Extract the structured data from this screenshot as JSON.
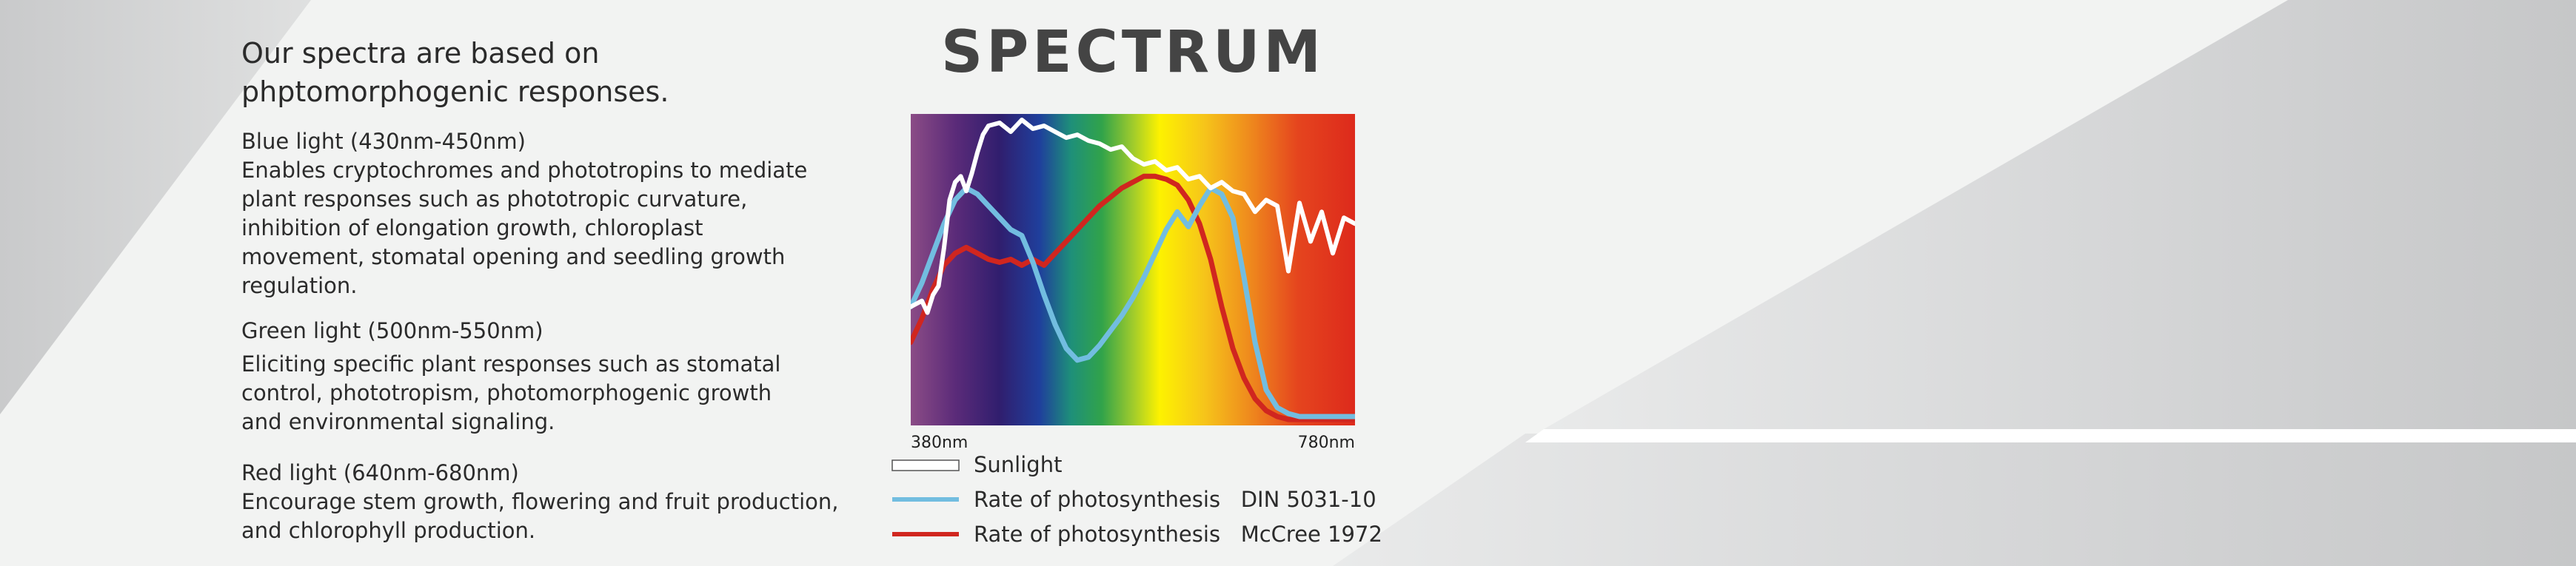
{
  "intro": {
    "line1": "Our spectra are based on",
    "line2": "phptomorphogenic responses."
  },
  "sections": [
    {
      "heading": "Blue light (430nm-450nm)",
      "lines": [
        "Enables cryptochromes and phototropins to mediate",
        "plant responses such as phototropic curvature,",
        "inhibition of elongation growth, chloroplast",
        "movement, stomatal opening and seedling growth",
        "regulation."
      ]
    },
    {
      "heading": "Green light (500nm-550nm)",
      "lines": [
        "Eliciting specific plant responses such as stomatal",
        "control, phototropism, photomorphogenic growth",
        "and environmental signaling."
      ]
    },
    {
      "heading": "Red light (640nm-680nm)",
      "lines": [
        "Encourage stem growth, flowering and fruit production,",
        "and chlorophyll production."
      ]
    }
  ],
  "chart_data": {
    "type": "line",
    "title": "SPECTRUM",
    "xlim": [
      380,
      780
    ],
    "x_tick_labels": [
      "380nm",
      "780nm"
    ],
    "background": "visible spectrum gradient",
    "series": [
      {
        "name": "Sunlight",
        "color": "#ffffff",
        "x": [
          380,
          390,
          395,
          400,
          405,
          410,
          415,
          420,
          425,
          430,
          435,
          440,
          445,
          450,
          460,
          470,
          480,
          490,
          500,
          510,
          520,
          530,
          540,
          550,
          560,
          570,
          580,
          590,
          600,
          610,
          620,
          630,
          640,
          650,
          660,
          670,
          680,
          690,
          700,
          710,
          720,
          730,
          740,
          750,
          760,
          770,
          780
        ],
        "y": [
          40,
          42,
          38,
          44,
          47,
          60,
          76,
          82,
          84,
          79,
          85,
          92,
          98,
          101,
          102,
          99,
          103,
          100,
          101,
          99,
          97,
          98,
          96,
          95,
          93,
          94,
          90,
          88,
          89,
          86,
          87,
          83,
          84,
          80,
          82,
          79,
          78,
          72,
          76,
          74,
          52,
          75,
          62,
          72,
          58,
          70,
          68
        ]
      },
      {
        "name": "Rate of photosynthesis   DIN 5031-10",
        "color": "#72bde0",
        "x": [
          380,
          390,
          400,
          410,
          420,
          430,
          440,
          450,
          460,
          470,
          480,
          490,
          500,
          510,
          520,
          530,
          540,
          550,
          560,
          570,
          580,
          590,
          600,
          610,
          620,
          630,
          640,
          650,
          660,
          670,
          680,
          690,
          700,
          710,
          720,
          730,
          740,
          750,
          760,
          770,
          780
        ],
        "y": [
          40,
          48,
          58,
          68,
          76,
          80,
          78,
          74,
          70,
          66,
          64,
          55,
          44,
          34,
          26,
          22,
          23,
          27,
          32,
          37,
          43,
          50,
          58,
          66,
          72,
          67,
          74,
          80,
          78,
          70,
          50,
          28,
          12,
          6,
          4,
          3,
          3,
          3,
          3,
          3,
          3
        ]
      },
      {
        "name": "Rate of photosynthesis   McCree 1972",
        "color": "#d0261f",
        "x": [
          380,
          390,
          400,
          410,
          420,
          430,
          440,
          450,
          460,
          470,
          480,
          490,
          500,
          510,
          520,
          530,
          540,
          550,
          560,
          570,
          580,
          590,
          600,
          610,
          620,
          630,
          640,
          650,
          660,
          670,
          680,
          690,
          700,
          710,
          720,
          730,
          740,
          750,
          760,
          770,
          780
        ],
        "y": [
          28,
          36,
          46,
          54,
          58,
          60,
          58,
          56,
          55,
          56,
          54,
          56,
          54,
          58,
          62,
          66,
          70,
          74,
          77,
          80,
          82,
          84,
          84,
          83,
          81,
          76,
          68,
          56,
          40,
          26,
          16,
          9,
          5,
          3,
          2,
          2,
          2,
          2,
          2,
          2,
          2
        ]
      }
    ],
    "ylim": [
      0,
      105
    ],
    "legend_placement": "bottom"
  }
}
